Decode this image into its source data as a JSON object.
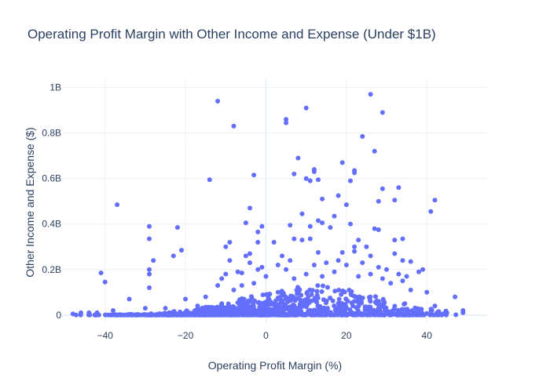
{
  "chart_data": {
    "type": "scatter",
    "title": "Operating Profit Margin with Other Income and Expense (Under $1B)",
    "xlabel": "Operating Profit Margin (%)",
    "ylabel": "Other Income and Expense ($)",
    "xlim": [
      -50.5,
      55
    ],
    "ylim": [
      -0.035,
      1.04
    ],
    "y_unit": "billions USD",
    "x_ticks": [
      -40,
      -20,
      0,
      20,
      40
    ],
    "x_tick_labels": [
      "−40",
      "−20",
      "0",
      "20",
      "40"
    ],
    "y_ticks": [
      0,
      0.2,
      0.4,
      0.6,
      0.8,
      1.0
    ],
    "y_tick_labels": [
      "0",
      "0.2B",
      "0.4B",
      "0.6B",
      "0.8B",
      "1B"
    ],
    "grid": true,
    "marker_color": "#636efa",
    "points": [
      [
        -12,
        0.94
      ],
      [
        -8,
        0.83
      ],
      [
        26,
        0.97
      ],
      [
        29,
        0.89
      ],
      [
        10,
        0.91
      ],
      [
        5,
        0.86
      ],
      [
        5,
        0.845
      ],
      [
        24,
        0.785
      ],
      [
        27,
        0.72
      ],
      [
        8,
        0.69
      ],
      [
        19,
        0.67
      ],
      [
        12,
        0.64
      ],
      [
        12,
        0.63
      ],
      [
        22,
        0.635
      ],
      [
        22,
        0.625
      ],
      [
        -3,
        0.615
      ],
      [
        7,
        0.62
      ],
      [
        10,
        0.6
      ],
      [
        11,
        0.59
      ],
      [
        13,
        0.595
      ],
      [
        21,
        0.59
      ],
      [
        -14,
        0.595
      ],
      [
        29,
        0.555
      ],
      [
        33,
        0.56
      ],
      [
        18,
        0.525
      ],
      [
        28,
        0.5
      ],
      [
        32,
        0.505
      ],
      [
        42,
        0.505
      ],
      [
        41,
        0.455
      ],
      [
        -37,
        0.485
      ],
      [
        -4,
        0.47
      ],
      [
        14,
        0.51
      ],
      [
        20,
        0.485
      ],
      [
        -2,
        0.365
      ],
      [
        9,
        0.445
      ],
      [
        17,
        0.435
      ],
      [
        13,
        0.415
      ],
      [
        14,
        0.405
      ],
      [
        6,
        0.395
      ],
      [
        11,
        0.39
      ],
      [
        16,
        0.385
      ],
      [
        -5,
        0.405
      ],
      [
        -1,
        0.39
      ],
      [
        -29,
        0.39
      ],
      [
        -22,
        0.385
      ],
      [
        27,
        0.38
      ],
      [
        28,
        0.375
      ],
      [
        7,
        0.335
      ],
      [
        2,
        0.32
      ],
      [
        21,
        0.4
      ],
      [
        -29,
        0.335
      ],
      [
        -9,
        0.32
      ],
      [
        -10,
        0.3
      ],
      [
        -2,
        0.32
      ],
      [
        9,
        0.33
      ],
      [
        11,
        0.335
      ],
      [
        23,
        0.33
      ],
      [
        25,
        0.3
      ],
      [
        32,
        0.33
      ],
      [
        34,
        0.335
      ],
      [
        36,
        0.235
      ],
      [
        22,
        0.3
      ],
      [
        22,
        0.28
      ],
      [
        -21,
        0.285
      ],
      [
        -28,
        0.24
      ],
      [
        -23,
        0.26
      ],
      [
        -4,
        0.27
      ],
      [
        -5,
        0.26
      ],
      [
        -9,
        0.24
      ],
      [
        -4,
        0.23
      ],
      [
        3,
        0.22
      ],
      [
        4,
        0.26
      ],
      [
        13,
        0.275
      ],
      [
        19,
        0.275
      ],
      [
        26,
        0.26
      ],
      [
        32,
        0.27
      ],
      [
        34,
        0.24
      ],
      [
        -29,
        0.2
      ],
      [
        -29,
        0.18
      ],
      [
        -29,
        0.12
      ],
      [
        -10,
        0.18
      ],
      [
        -7,
        0.19
      ],
      [
        -6,
        0.185
      ],
      [
        -2,
        0.2
      ],
      [
        -1,
        0.21
      ],
      [
        5,
        0.2
      ],
      [
        6,
        0.24
      ],
      [
        12,
        0.22
      ],
      [
        15,
        0.23
      ],
      [
        18,
        0.24
      ],
      [
        20,
        0.22
      ],
      [
        24,
        0.23
      ],
      [
        28,
        0.21
      ],
      [
        30,
        0.2
      ],
      [
        33,
        0.18
      ],
      [
        35,
        0.17
      ],
      [
        38,
        0.19
      ],
      [
        39,
        0.2
      ],
      [
        -41,
        0.185
      ],
      [
        -40,
        0.145
      ],
      [
        -34,
        0.07
      ],
      [
        -20,
        0.07
      ],
      [
        -15,
        0.08
      ],
      [
        -12,
        0.13
      ],
      [
        -11,
        0.16
      ],
      [
        -8,
        0.11
      ],
      [
        -6,
        0.13
      ],
      [
        -3,
        0.14
      ],
      [
        0,
        0.17
      ],
      [
        3,
        0.1
      ],
      [
        7,
        0.16
      ],
      [
        10,
        0.18
      ],
      [
        14,
        0.17
      ],
      [
        17,
        0.19
      ],
      [
        23,
        0.17
      ],
      [
        26,
        0.18
      ],
      [
        29,
        0.16
      ],
      [
        31,
        0.14
      ],
      [
        34,
        0.15
      ],
      [
        36,
        0.11
      ],
      [
        40,
        0.1
      ],
      [
        42,
        0.04
      ],
      [
        47,
        0.08
      ],
      [
        -17,
        0.04
      ],
      [
        -25,
        0.03
      ],
      [
        -30,
        0.03
      ],
      [
        -38,
        0.02
      ],
      [
        -46,
        0.01
      ],
      [
        -44,
        0.01
      ],
      [
        -42,
        0.01
      ],
      [
        -48,
        0.005
      ],
      [
        49,
        0.01
      ],
      [
        49,
        0.02
      ],
      [
        45,
        0.01
      ],
      [
        44,
        0.005
      ]
    ]
  }
}
